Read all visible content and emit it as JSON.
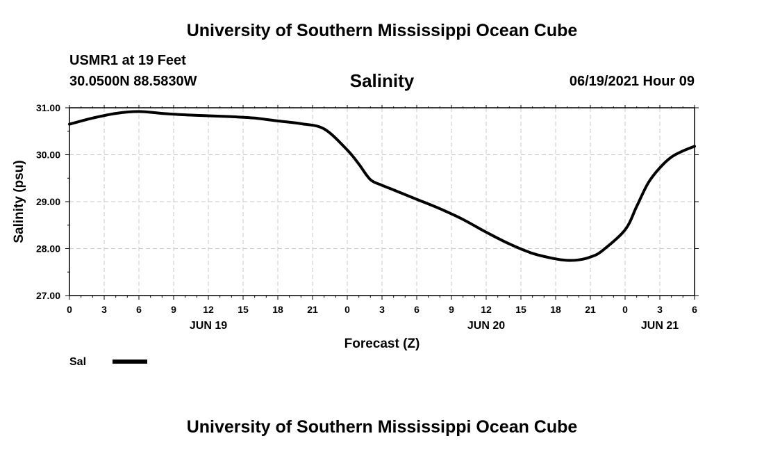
{
  "header": {
    "title": "University of Southern Mississippi Ocean Cube",
    "station": "USMR1 at 19 Feet",
    "coordinates": "30.0500N  88.5830W",
    "timestamp": "06/19/2021 Hour 09"
  },
  "footer": {
    "title": "University of Southern Mississippi Ocean Cube"
  },
  "chart_data": {
    "type": "line",
    "title": "Salinity",
    "xlabel": "Forecast (Z)",
    "ylabel": "Salinity (psu)",
    "ylim": [
      27.0,
      31.0
    ],
    "xlim": [
      0,
      54
    ],
    "yticks": [
      "27.00",
      "28.00",
      "29.00",
      "30.00",
      "31.00"
    ],
    "ytick_values": [
      27,
      28,
      29,
      30,
      31
    ],
    "xtick_hours": [
      0,
      3,
      6,
      9,
      12,
      15,
      18,
      21,
      24,
      27,
      30,
      33,
      36,
      39,
      42,
      45,
      48,
      51,
      54
    ],
    "xtick_labels": [
      "0",
      "3",
      "6",
      "9",
      "12",
      "15",
      "18",
      "21",
      "0",
      "3",
      "6",
      "9",
      "12",
      "15",
      "18",
      "21",
      "0",
      "3",
      "6"
    ],
    "date_labels": [
      {
        "label": "JUN 19",
        "hour": 12
      },
      {
        "label": "JUN 20",
        "hour": 36
      },
      {
        "label": "JUN 21",
        "hour": 51
      }
    ],
    "grid": true,
    "legend": {
      "label": "Sal",
      "placement": "bottom-left"
    },
    "series": [
      {
        "name": "Sal",
        "color": "#000000",
        "x": [
          0,
          2,
          4,
          6,
          8,
          10,
          12,
          14,
          16,
          18,
          20,
          22,
          24,
          25,
          26,
          27,
          28,
          30,
          32,
          34,
          36,
          38,
          40,
          42,
          43,
          44,
          45,
          46,
          48,
          49,
          50,
          51,
          52,
          53,
          54
        ],
        "values": [
          30.65,
          30.78,
          30.88,
          30.92,
          30.88,
          30.85,
          30.83,
          30.81,
          30.78,
          30.72,
          30.66,
          30.55,
          30.1,
          29.8,
          29.47,
          29.35,
          29.25,
          29.05,
          28.85,
          28.62,
          28.35,
          28.1,
          27.9,
          27.78,
          27.75,
          27.76,
          27.82,
          27.95,
          28.4,
          28.9,
          29.4,
          29.72,
          29.95,
          30.08,
          30.18
        ]
      }
    ]
  }
}
